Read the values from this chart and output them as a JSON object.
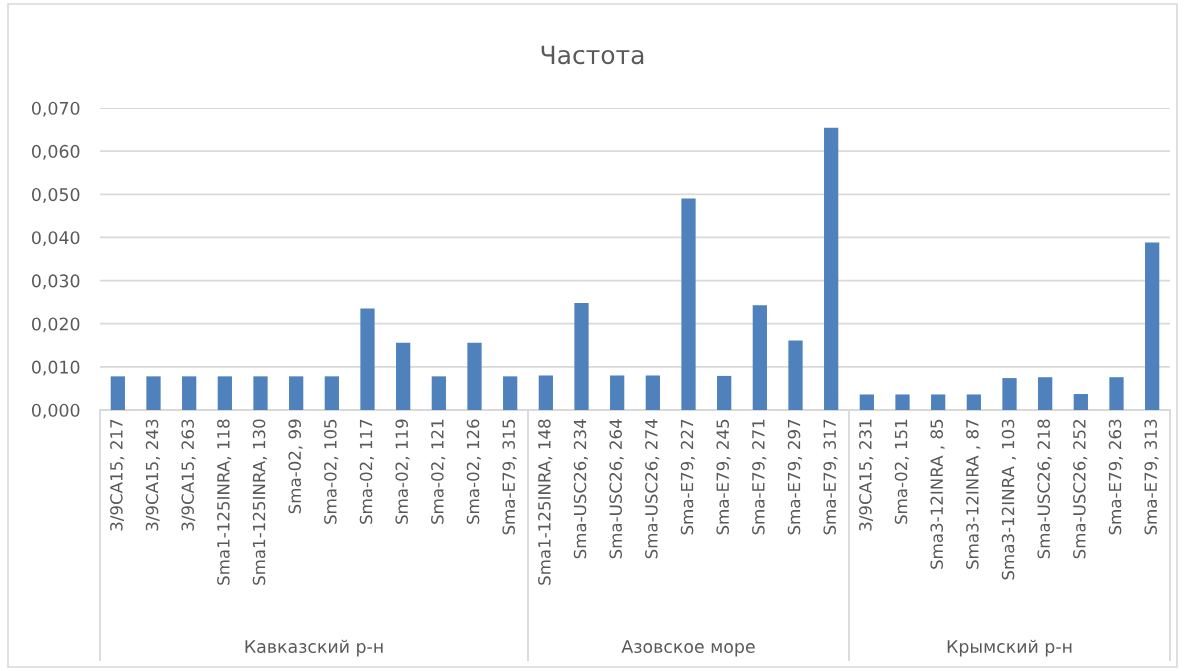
{
  "chart_data": [
    {
      "type": "bar",
      "xlabel": "Кавказский р-н",
      "categories": [
        "3/9CA15, 217",
        "3/9CA15, 243",
        "3/9CA15, 263",
        "Sma1-125INRA, 118",
        "Sma1-125INRA, 130",
        "Sma-02, 99",
        "Sma-02, 105",
        "Sma-02, 117",
        "Sma-02, 119",
        "Sma-02, 121",
        "Sma-02, 126",
        "Sma-E79, 315"
      ],
      "values": [
        0.0078,
        0.0078,
        0.0078,
        0.0078,
        0.0078,
        0.0078,
        0.0078,
        0.0235,
        0.0156,
        0.0078,
        0.0156,
        0.0078
      ],
      "color": "#4f81bd",
      "ylim": [
        0,
        0.07
      ],
      "yticks": [
        {
          "value": 0,
          "label": "0,000"
        },
        {
          "value": 0.01,
          "label": "0,010"
        },
        {
          "value": 0.02,
          "label": "0,020"
        },
        {
          "value": 0.03,
          "label": "0,030"
        },
        {
          "value": 0.04,
          "label": "0,040"
        },
        {
          "value": 0.05,
          "label": "0,050"
        },
        {
          "value": 0.06,
          "label": "0,060"
        },
        {
          "value": 0.07,
          "label": "0,070"
        }
      ],
      "grid": "y"
    },
    {
      "type": "bar",
      "title": "Частота",
      "xlabel": "Азовское море",
      "categories": [
        "Sma1-125INRA, 148",
        "Sma-USC26, 234",
        "Sma-USC26, 264",
        "Sma-USC26, 274",
        "Sma-E79, 227",
        "Sma-E79, 245",
        "Sma-E79, 271",
        "Sma-E79, 297",
        "Sma-E79, 317"
      ],
      "values": [
        0.008,
        0.0248,
        0.008,
        0.008,
        0.049,
        0.0079,
        0.0243,
        0.0161,
        0.0654
      ],
      "color": "#4f81bd",
      "ylim": [
        0,
        0.07
      ],
      "yticks": [
        {
          "value": 0,
          "label": null
        },
        {
          "value": 0.01,
          "label": null
        },
        {
          "value": 0.02,
          "label": null
        },
        {
          "value": 0.03,
          "label": null
        },
        {
          "value": 0.04,
          "label": null
        },
        {
          "value": 0.05,
          "label": null
        },
        {
          "value": 0.06,
          "label": null
        },
        {
          "value": 0.07,
          "label": null
        }
      ],
      "grid": "y",
      "tick_labels": "x"
    },
    {
      "type": "bar",
      "xlabel": "Крымский р-н",
      "categories": [
        "3/9CA15, 231",
        "Sma-02, 151",
        "Sma3-12INRA , 85",
        "Sma3-12INRA , 87",
        "Sma3-12INRA , 103",
        "Sma-USC26, 218",
        "Sma-USC26, 252",
        "Sma-E79, 263",
        "Sma-E79, 313"
      ],
      "values": [
        0.0036,
        0.0036,
        0.0036,
        0.0036,
        0.0074,
        0.0076,
        0.0037,
        0.0076,
        0.0388
      ],
      "color": "#4f81bd",
      "ylim": [
        0,
        0.07
      ],
      "yticks": [
        {
          "value": 0,
          "label": null
        },
        {
          "value": 0.01,
          "label": null
        },
        {
          "value": 0.02,
          "label": null
        },
        {
          "value": 0.03,
          "label": null
        },
        {
          "value": 0.04,
          "label": null
        },
        {
          "value": 0.05,
          "label": null
        },
        {
          "value": 0.06,
          "label": null
        },
        {
          "value": 0.07,
          "label": null
        }
      ],
      "grid": "y",
      "tick_labels": "x"
    }
  ]
}
